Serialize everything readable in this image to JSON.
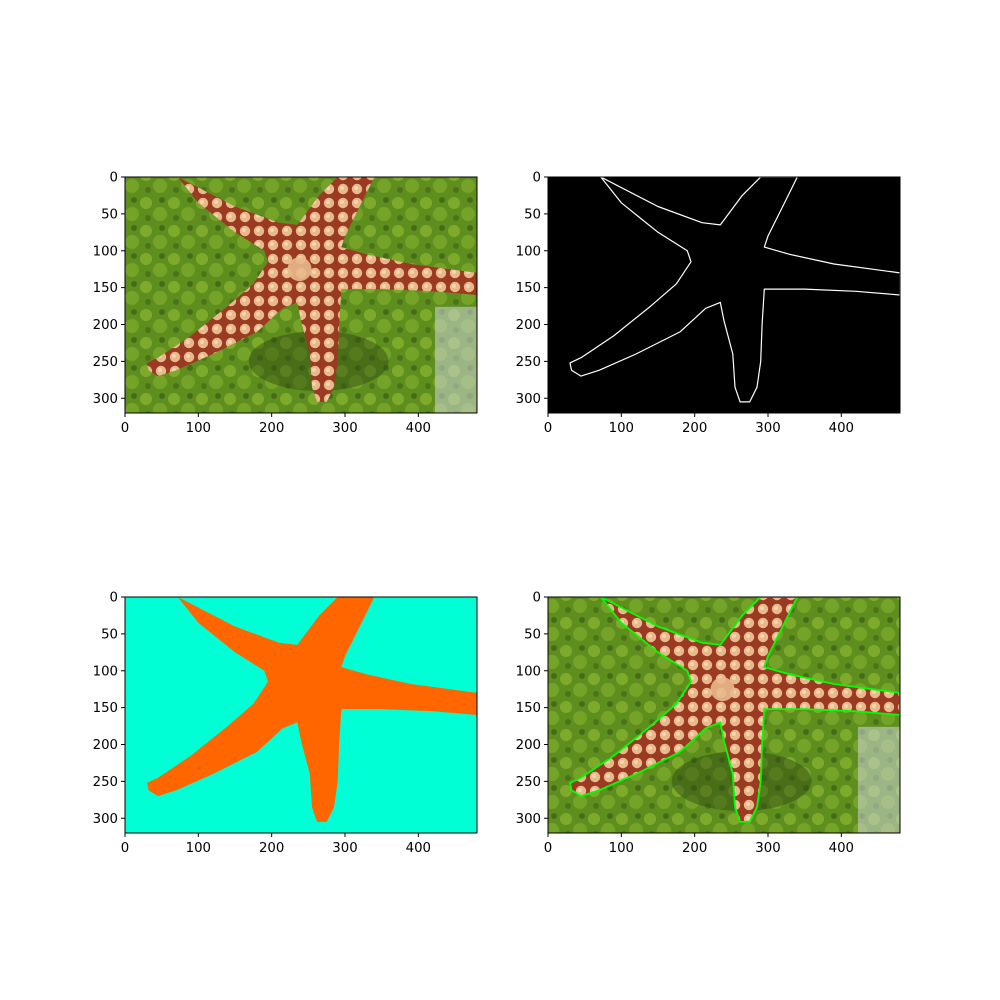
{
  "chart_data": [
    {
      "type": "image",
      "content": "photo of a starfish on green algae",
      "xlim": [
        0,
        480
      ],
      "ylim": [
        320,
        0
      ],
      "xticks": [
        0,
        100,
        200,
        300,
        400
      ],
      "yticks": [
        0,
        50,
        100,
        150,
        200,
        250,
        300
      ]
    },
    {
      "type": "image",
      "content": "edge map: white starfish contour on black",
      "xlim": [
        0,
        480
      ],
      "ylim": [
        320,
        0
      ],
      "xticks": [
        0,
        100,
        200,
        300,
        400
      ],
      "yticks": [
        0,
        50,
        100,
        150,
        200,
        250,
        300
      ]
    },
    {
      "type": "image",
      "content": "segmentation mask: orange starfish on cyan background",
      "xlim": [
        0,
        480
      ],
      "ylim": [
        320,
        0
      ],
      "xticks": [
        0,
        100,
        200,
        300,
        400
      ],
      "yticks": [
        0,
        50,
        100,
        150,
        200,
        250,
        300
      ]
    },
    {
      "type": "image",
      "content": "photo with green contour overlay around the starfish",
      "xlim": [
        0,
        480
      ],
      "ylim": [
        320,
        0
      ],
      "xticks": [
        0,
        100,
        200,
        300,
        400
      ],
      "yticks": [
        0,
        50,
        100,
        150,
        200,
        250,
        300
      ]
    }
  ],
  "starfish_outline": [
    [
      72,
      0
    ],
    [
      150,
      40
    ],
    [
      210,
      62
    ],
    [
      235,
      65
    ],
    [
      265,
      25
    ],
    [
      290,
      0
    ],
    [
      340,
      0
    ],
    [
      320,
      40
    ],
    [
      300,
      80
    ],
    [
      295,
      95
    ],
    [
      330,
      105
    ],
    [
      390,
      118
    ],
    [
      480,
      130
    ],
    [
      480,
      160
    ],
    [
      420,
      155
    ],
    [
      350,
      152
    ],
    [
      295,
      152
    ],
    [
      292,
      200
    ],
    [
      290,
      250
    ],
    [
      285,
      285
    ],
    [
      275,
      305
    ],
    [
      262,
      305
    ],
    [
      255,
      285
    ],
    [
      252,
      240
    ],
    [
      240,
      195
    ],
    [
      235,
      170
    ],
    [
      215,
      178
    ],
    [
      180,
      210
    ],
    [
      120,
      240
    ],
    [
      70,
      262
    ],
    [
      45,
      270
    ],
    [
      32,
      262
    ],
    [
      30,
      252
    ],
    [
      45,
      245
    ],
    [
      90,
      215
    ],
    [
      140,
      175
    ],
    [
      175,
      145
    ],
    [
      195,
      115
    ],
    [
      190,
      100
    ],
    [
      150,
      75
    ],
    [
      100,
      35
    ]
  ],
  "colors": {
    "algae": "#5e8f1e",
    "algae_light": "#86b030",
    "algae_dark": "#2f4a12",
    "starfish_body": "#e9b98c",
    "starfish_red": "#9a3a22",
    "edge": "#ffffff",
    "edge_bg": "#000000",
    "mask_bg": "#00ffd5",
    "mask_fg": "#ff6600",
    "contour": "#00ff00"
  }
}
